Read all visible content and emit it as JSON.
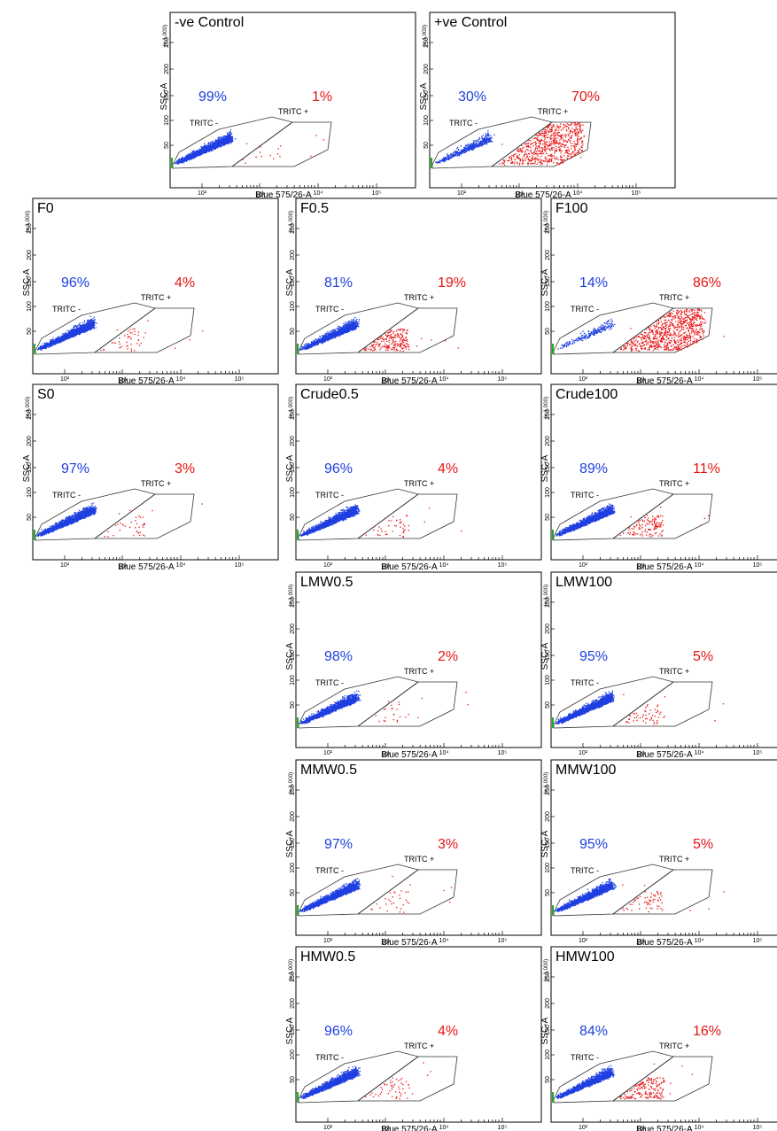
{
  "colors": {
    "negative": "#1f3fe0",
    "positive": "#e81414",
    "frame": "#000000",
    "gate": "#333333",
    "marker": "#22aa22"
  },
  "chart_data": {
    "type": "scatter",
    "xlabel": "Blue 575/26-A",
    "ylabel": "SSC-A",
    "y_scale_label": "(x 1,000)",
    "x_scale": "log",
    "x_tick_labels": [
      "10²",
      "10³",
      "10⁴",
      "10⁵"
    ],
    "y_tick_labels": [
      "50",
      "100",
      "150",
      "200",
      "250"
    ],
    "gates": [
      {
        "name": "TRITC -",
        "color": "blue"
      },
      {
        "name": "TRITC +",
        "color": "red"
      }
    ],
    "panels": [
      {
        "title": "-ve Control",
        "neg_pct": 99,
        "pos_pct": 1,
        "neg_label": "99%",
        "pos_label": "1%"
      },
      {
        "title": "+ve Control",
        "neg_pct": 30,
        "pos_pct": 70,
        "neg_label": "30%",
        "pos_label": "70%"
      },
      {
        "title": "F0",
        "neg_pct": 96,
        "pos_pct": 4,
        "neg_label": "96%",
        "pos_label": "4%"
      },
      {
        "title": "F0.5",
        "neg_pct": 81,
        "pos_pct": 19,
        "neg_label": "81%",
        "pos_label": "19%"
      },
      {
        "title": "F100",
        "neg_pct": 14,
        "pos_pct": 86,
        "neg_label": "14%",
        "pos_label": "86%"
      },
      {
        "title": "S0",
        "neg_pct": 97,
        "pos_pct": 3,
        "neg_label": "97%",
        "pos_label": "3%"
      },
      {
        "title": "Crude0.5",
        "neg_pct": 96,
        "pos_pct": 4,
        "neg_label": "96%",
        "pos_label": "4%"
      },
      {
        "title": "Crude100",
        "neg_pct": 89,
        "pos_pct": 11,
        "neg_label": "89%",
        "pos_label": "11%"
      },
      {
        "title": "LMW0.5",
        "neg_pct": 98,
        "pos_pct": 2,
        "neg_label": "98%",
        "pos_label": "2%"
      },
      {
        "title": "LMW100",
        "neg_pct": 95,
        "pos_pct": 5,
        "neg_label": "95%",
        "pos_label": "5%"
      },
      {
        "title": "MMW0.5",
        "neg_pct": 97,
        "pos_pct": 3,
        "neg_label": "97%",
        "pos_label": "3%"
      },
      {
        "title": "MMW100",
        "neg_pct": 95,
        "pos_pct": 5,
        "neg_label": "95%",
        "pos_label": "5%"
      },
      {
        "title": "HMW0.5",
        "neg_pct": 96,
        "pos_pct": 4,
        "neg_label": "96%",
        "pos_label": "4%"
      },
      {
        "title": "HMW100",
        "neg_pct": 84,
        "pos_pct": 16,
        "neg_label": "84%",
        "pos_label": "16%"
      }
    ]
  }
}
